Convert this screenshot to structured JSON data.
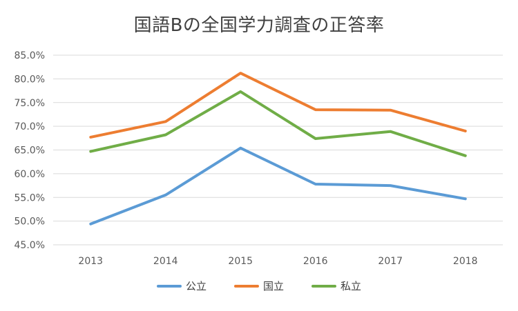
{
  "chart_data": {
    "type": "line",
    "title": "国語Bの全国学力調査の正答率",
    "xlabel": "",
    "ylabel": "",
    "categories": [
      "2013",
      "2014",
      "2015",
      "2016",
      "2017",
      "2018"
    ],
    "ylim": [
      45.0,
      85.0
    ],
    "yticks": [
      "85.0%",
      "80.0%",
      "75.0%",
      "70.0%",
      "65.0%",
      "60.0%",
      "55.0%",
      "50.0%",
      "45.0%"
    ],
    "ytick_values": [
      85,
      80,
      75,
      70,
      65,
      60,
      55,
      50,
      45
    ],
    "grid": true,
    "legend_position": "bottom",
    "series": [
      {
        "name": "公立",
        "color": "#5B9BD5",
        "values": [
          49.4,
          55.5,
          65.4,
          57.8,
          57.5,
          54.7
        ]
      },
      {
        "name": "国立",
        "color": "#ED7D31",
        "values": [
          67.7,
          71.0,
          81.2,
          73.5,
          73.4,
          69.0
        ]
      },
      {
        "name": "私立",
        "color": "#70AD47",
        "values": [
          64.7,
          68.2,
          77.3,
          67.4,
          68.9,
          63.8
        ]
      }
    ]
  }
}
